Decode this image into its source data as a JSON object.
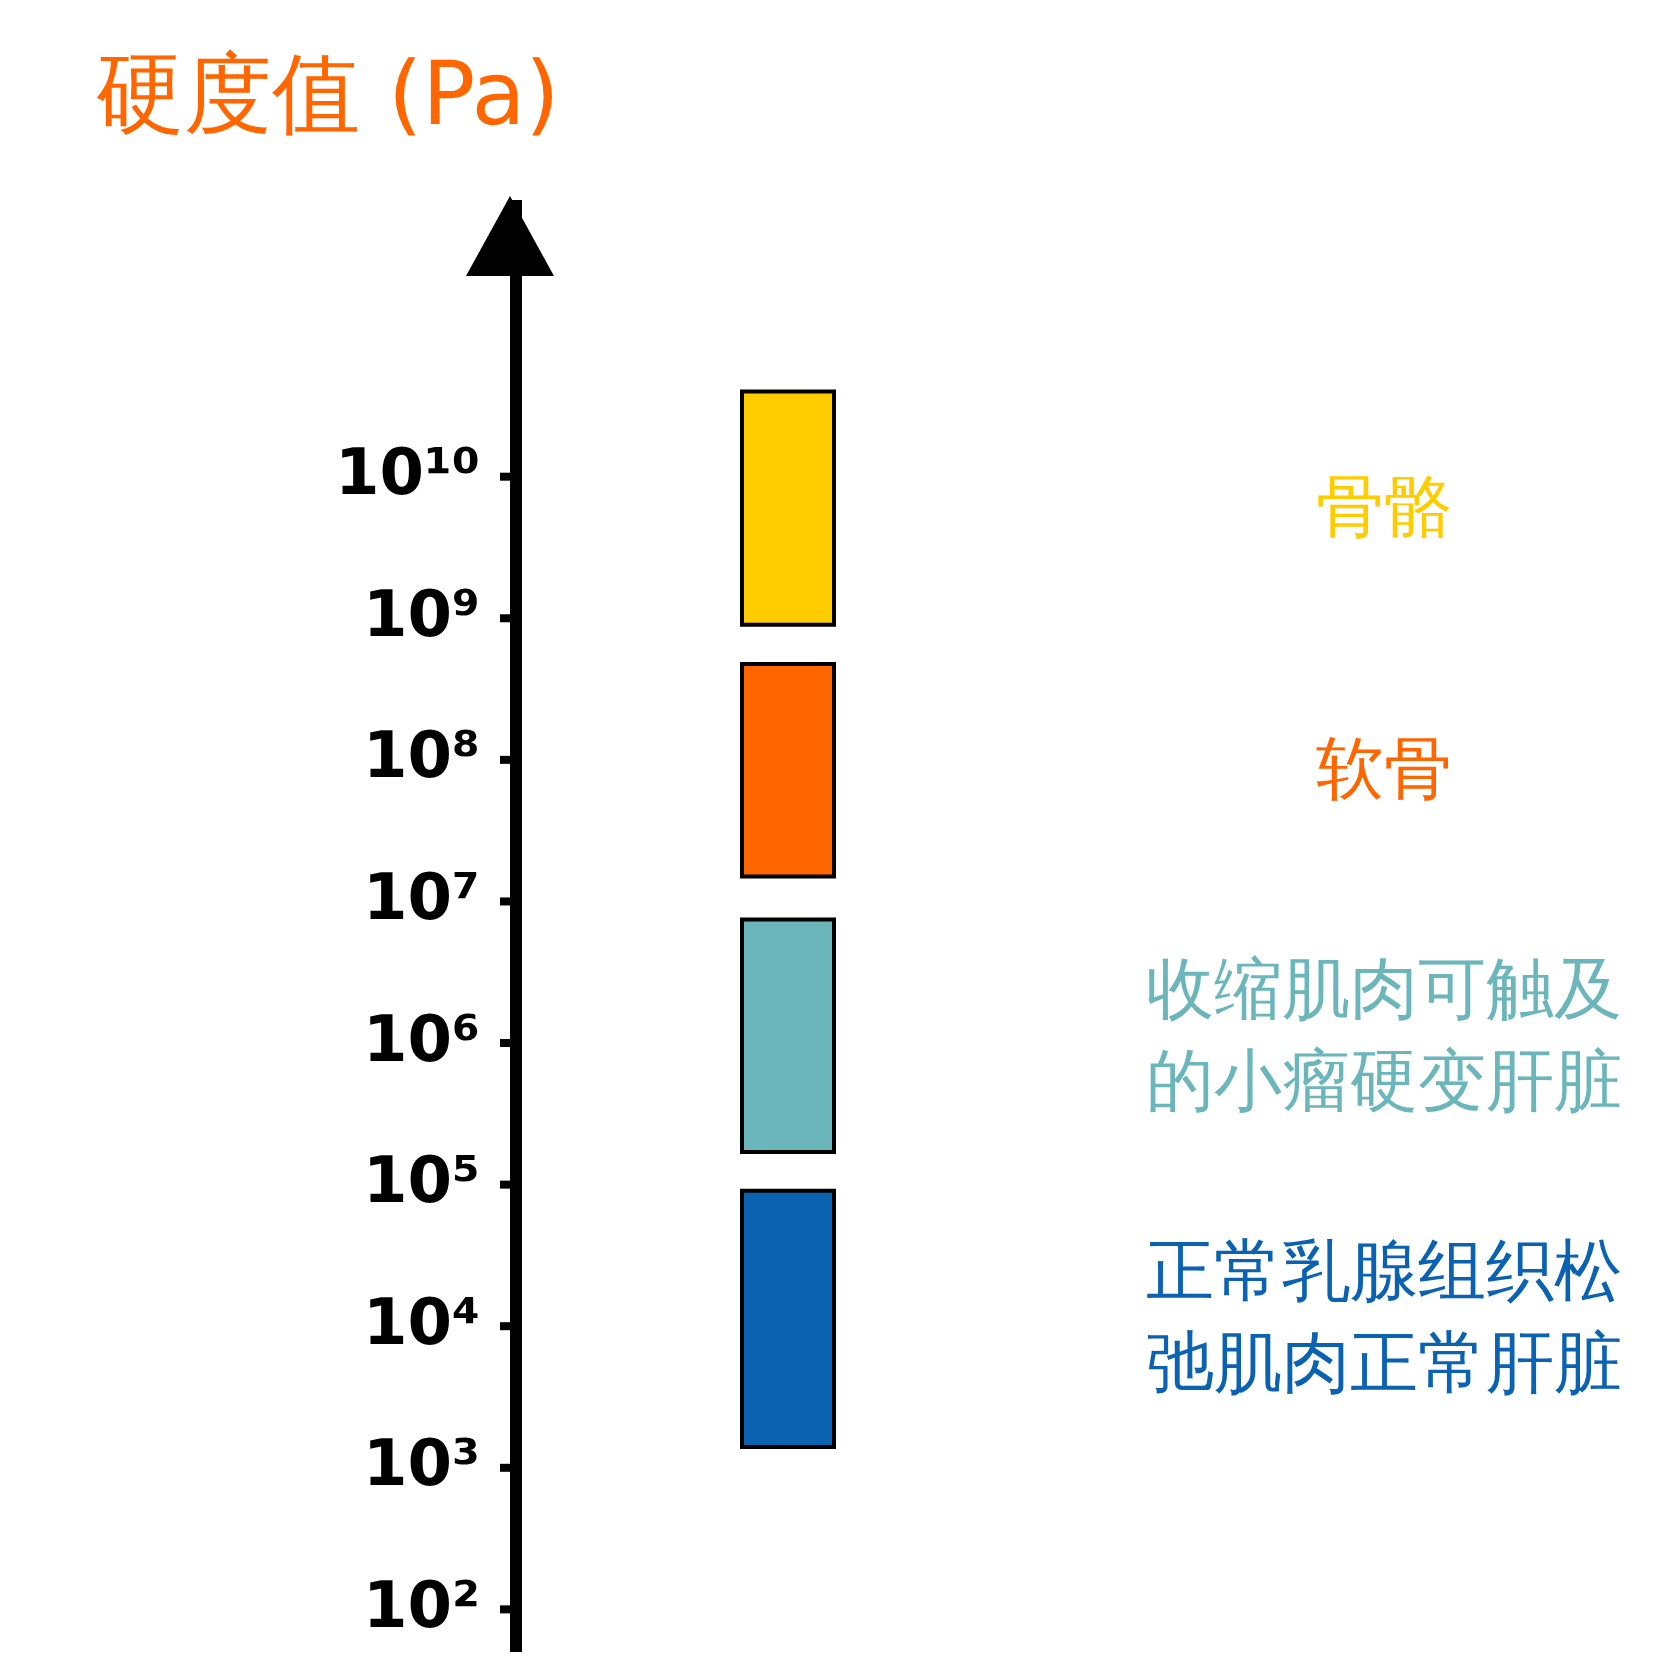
{
  "chart_data": {
    "type": "bar",
    "ylabel": "硬度值 (Pa)",
    "categories": [
      null
    ],
    "log": "y",
    "ylim": [
      50,
      900000000000
    ],
    "yticks": [
      {
        "value": 100,
        "label": "10²"
      },
      {
        "value": 1000,
        "label": "10³"
      },
      {
        "value": 10000,
        "label": "10⁴"
      },
      {
        "value": 100000,
        "label": "10⁵"
      },
      {
        "value": 1000000,
        "label": "10⁶"
      },
      {
        "value": 10000000,
        "label": "10⁷"
      },
      {
        "value": 100000000,
        "label": "10⁸"
      },
      {
        "value": 1000000000,
        "label": "10⁹"
      },
      {
        "value": 10000000000,
        "label": "10¹⁰"
      }
    ],
    "tick_labels": "y",
    "grid": false,
    "legend": false,
    "series": [
      {
        "name": "骨骼",
        "color": "#ffcc00",
        "base": [
          900000000
        ],
        "values": [
          39000000000
        ]
      },
      {
        "name": "软骨",
        "color": "#ff6600",
        "base": [
          15000000
        ],
        "values": [
          460000000
        ]
      },
      {
        "name": "收缩肌肉可触及的小瘤硬变肝脏",
        "color": "#6ab6bb",
        "base": [
          170000
        ],
        "values": [
          7300000
        ]
      },
      {
        "name": "正常乳腺组织松弛肌肉正常肝脏",
        "color": "#0a62b0",
        "base": [
          1400
        ],
        "values": [
          89000
        ]
      }
    ]
  }
}
